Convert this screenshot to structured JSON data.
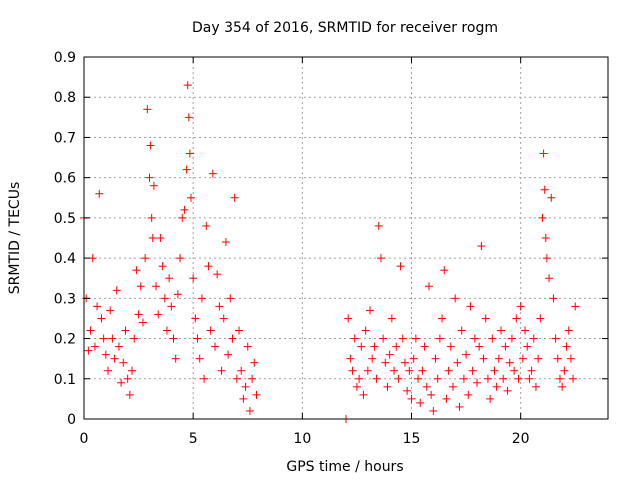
{
  "chart_data": {
    "type": "scatter",
    "title": "Day 354 of 2016, SRMTID for receiver rogm",
    "xlabel": "GPS time / hours",
    "ylabel": "SRMTID / TECUs",
    "xlim": [
      0,
      24
    ],
    "ylim": [
      0,
      0.9
    ],
    "xticks": [
      0,
      5,
      10,
      15,
      20
    ],
    "yticks": [
      0,
      0.1,
      0.2,
      0.3,
      0.4,
      0.5,
      0.6,
      0.7,
      0.8,
      0.9
    ],
    "grid": true,
    "marker": "plus",
    "color": "#ff0000",
    "series": [
      {
        "x": [
          0.0,
          0.1,
          0.2,
          0.3,
          0.4,
          0.5,
          0.6,
          0.7,
          0.8,
          0.9,
          1.0,
          1.1,
          1.2,
          1.3,
          1.4,
          1.5,
          1.6,
          1.7,
          1.8,
          1.9,
          2.0,
          2.1,
          2.2,
          2.3,
          2.4,
          2.5,
          2.6,
          2.7,
          2.8,
          2.9,
          3.0,
          3.05,
          3.1,
          3.15,
          3.2,
          3.3,
          3.4,
          3.5,
          3.6,
          3.7,
          3.8,
          3.9,
          4.0,
          4.1,
          4.2,
          4.3,
          4.4,
          4.5,
          4.6,
          4.7,
          4.75,
          4.8,
          4.85,
          4.9,
          5.0,
          5.1,
          5.2,
          5.3,
          5.4,
          5.5,
          5.6,
          5.7,
          5.8,
          5.9,
          6.0,
          6.1,
          6.2,
          6.3,
          6.4,
          6.5,
          6.6,
          6.7,
          6.8,
          6.9,
          7.0,
          7.1,
          7.2,
          7.3,
          7.4,
          7.5,
          7.6,
          7.7,
          7.8,
          7.9,
          12.0,
          12.1,
          12.2,
          12.3,
          12.4,
          12.5,
          12.6,
          12.7,
          12.8,
          12.9,
          13.0,
          13.1,
          13.2,
          13.3,
          13.4,
          13.5,
          13.6,
          13.7,
          13.8,
          13.9,
          14.0,
          14.1,
          14.2,
          14.3,
          14.4,
          14.5,
          14.6,
          14.7,
          14.8,
          14.9,
          15.0,
          15.1,
          15.2,
          15.3,
          15.4,
          15.5,
          15.6,
          15.7,
          15.8,
          15.9,
          16.0,
          16.1,
          16.2,
          16.3,
          16.4,
          16.5,
          16.6,
          16.7,
          16.8,
          16.9,
          17.0,
          17.1,
          17.2,
          17.3,
          17.4,
          17.5,
          17.6,
          17.7,
          17.8,
          17.9,
          18.0,
          18.1,
          18.2,
          18.3,
          18.4,
          18.5,
          18.6,
          18.7,
          18.8,
          18.9,
          19.0,
          19.1,
          19.2,
          19.3,
          19.4,
          19.5,
          19.6,
          19.7,
          19.8,
          19.9,
          20.0,
          20.1,
          20.2,
          20.3,
          20.4,
          20.5,
          20.6,
          20.7,
          20.8,
          20.9,
          21.0,
          21.05,
          21.1,
          21.15,
          21.2,
          21.3,
          21.4,
          21.5,
          21.6,
          21.7,
          21.8,
          21.9,
          22.0,
          22.1,
          22.2,
          22.3,
          22.4,
          22.5
        ],
        "y": [
          0.5,
          0.3,
          0.17,
          0.22,
          0.4,
          0.18,
          0.28,
          0.56,
          0.25,
          0.2,
          0.16,
          0.12,
          0.27,
          0.2,
          0.15,
          0.32,
          0.18,
          0.09,
          0.14,
          0.22,
          0.1,
          0.06,
          0.12,
          0.2,
          0.37,
          0.26,
          0.33,
          0.24,
          0.4,
          0.77,
          0.6,
          0.68,
          0.5,
          0.45,
          0.58,
          0.33,
          0.26,
          0.45,
          0.38,
          0.3,
          0.22,
          0.35,
          0.28,
          0.2,
          0.15,
          0.31,
          0.4,
          0.5,
          0.52,
          0.62,
          0.83,
          0.75,
          0.66,
          0.55,
          0.35,
          0.25,
          0.2,
          0.15,
          0.3,
          0.1,
          0.48,
          0.38,
          0.22,
          0.61,
          0.18,
          0.36,
          0.28,
          0.12,
          0.25,
          0.44,
          0.16,
          0.3,
          0.2,
          0.55,
          0.1,
          0.22,
          0.12,
          0.05,
          0.08,
          0.18,
          0.02,
          0.1,
          0.14,
          0.06,
          0.0,
          0.25,
          0.15,
          0.12,
          0.2,
          0.08,
          0.1,
          0.18,
          0.06,
          0.22,
          0.12,
          0.27,
          0.15,
          0.18,
          0.1,
          0.48,
          0.4,
          0.2,
          0.14,
          0.08,
          0.16,
          0.25,
          0.12,
          0.18,
          0.1,
          0.38,
          0.2,
          0.14,
          0.07,
          0.12,
          0.05,
          0.15,
          0.2,
          0.1,
          0.04,
          0.12,
          0.18,
          0.08,
          0.33,
          0.06,
          0.02,
          0.15,
          0.1,
          0.2,
          0.25,
          0.37,
          0.05,
          0.12,
          0.18,
          0.08,
          0.3,
          0.14,
          0.03,
          0.22,
          0.1,
          0.16,
          0.06,
          0.28,
          0.12,
          0.2,
          0.09,
          0.18,
          0.43,
          0.15,
          0.25,
          0.1,
          0.05,
          0.2,
          0.12,
          0.08,
          0.15,
          0.22,
          0.1,
          0.18,
          0.07,
          0.14,
          0.2,
          0.12,
          0.25,
          0.1,
          0.28,
          0.15,
          0.22,
          0.18,
          0.1,
          0.12,
          0.2,
          0.08,
          0.15,
          0.25,
          0.5,
          0.66,
          0.57,
          0.45,
          0.4,
          0.35,
          0.55,
          0.3,
          0.2,
          0.15,
          0.1,
          0.08,
          0.12,
          0.18,
          0.22,
          0.15,
          0.1,
          0.28
        ]
      }
    ]
  }
}
